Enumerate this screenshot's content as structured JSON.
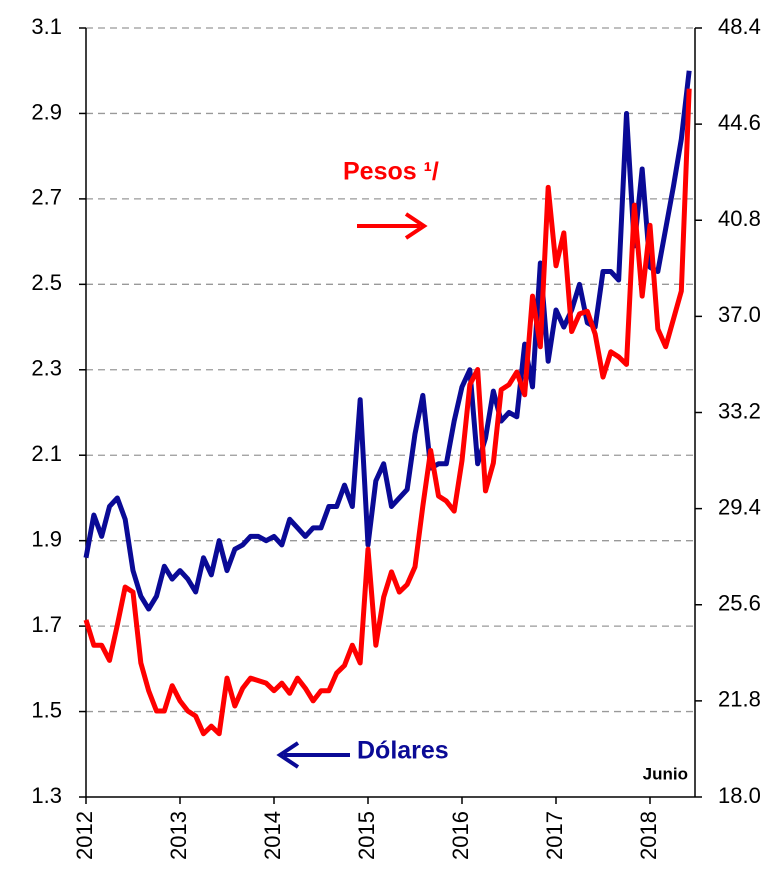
{
  "chart_data": {
    "type": "line",
    "categories": [
      "2012",
      null,
      null,
      null,
      null,
      null,
      null,
      null,
      null,
      null,
      null,
      null,
      "2013",
      null,
      null,
      null,
      null,
      null,
      null,
      null,
      null,
      null,
      null,
      null,
      "2014",
      null,
      null,
      null,
      null,
      null,
      null,
      null,
      null,
      null,
      null,
      null,
      "2015",
      null,
      null,
      null,
      null,
      null,
      null,
      null,
      null,
      null,
      null,
      null,
      "2016",
      null,
      null,
      null,
      null,
      null,
      null,
      null,
      null,
      null,
      null,
      null,
      "2017",
      null,
      null,
      null,
      null,
      null,
      null,
      null,
      null,
      null,
      null,
      null,
      "2018",
      null,
      null,
      null,
      null,
      null
    ],
    "series": [
      {
        "name": "Dólares",
        "color": "#0a0a96",
        "axis": "y",
        "values": [
          1.86,
          1.96,
          1.91,
          1.98,
          2.0,
          1.95,
          1.83,
          1.77,
          1.74,
          1.77,
          1.84,
          1.81,
          1.83,
          1.81,
          1.78,
          1.86,
          1.82,
          1.9,
          1.83,
          1.88,
          1.89,
          1.91,
          1.91,
          1.9,
          1.91,
          1.89,
          1.95,
          1.93,
          1.91,
          1.93,
          1.93,
          1.98,
          1.98,
          2.03,
          1.98,
          2.23,
          1.89,
          2.04,
          2.08,
          1.98,
          2.0,
          2.02,
          2.15,
          2.24,
          2.07,
          2.08,
          2.08,
          2.18,
          2.26,
          2.3,
          2.08,
          2.14,
          2.25,
          2.18,
          2.2,
          2.19,
          2.36,
          2.26,
          2.55,
          2.32,
          2.44,
          2.4,
          2.44,
          2.5,
          2.41,
          2.4,
          2.53,
          2.53,
          2.51,
          2.9,
          2.59,
          2.77,
          2.54,
          2.53,
          2.63,
          2.73,
          2.84,
          3.0
        ]
      },
      {
        "name": "Pesos ¹/",
        "color": "#ff0000",
        "axis": "y2",
        "values": [
          25.0,
          24.0,
          24.0,
          23.4,
          24.8,
          26.3,
          26.1,
          23.3,
          22.2,
          21.4,
          21.4,
          22.4,
          21.8,
          21.4,
          21.2,
          20.5,
          20.8,
          20.5,
          22.7,
          21.6,
          22.3,
          22.7,
          22.6,
          22.5,
          22.2,
          22.5,
          22.1,
          22.7,
          22.3,
          21.8,
          22.2,
          22.2,
          22.9,
          23.2,
          24.0,
          23.3,
          27.8,
          24.0,
          25.9,
          26.9,
          26.1,
          26.4,
          27.1,
          29.5,
          31.7,
          29.9,
          29.7,
          29.3,
          31.3,
          34.3,
          34.9,
          30.1,
          31.2,
          34.1,
          34.3,
          34.8,
          33.9,
          37.8,
          35.8,
          42.1,
          39.0,
          40.3,
          36.4,
          37.1,
          37.2,
          36.3,
          34.6,
          35.6,
          35.4,
          35.1,
          41.4,
          37.8,
          40.6,
          36.5,
          35.8,
          36.9,
          38.0,
          46.0
        ]
      }
    ],
    "ylim": [
      1.3,
      3.1
    ],
    "yticks": [
      1.3,
      1.5,
      1.7,
      1.9,
      2.1,
      2.3,
      2.5,
      2.7,
      2.9,
      3.1
    ],
    "y2lim": [
      18,
      48.4
    ],
    "y2ticks": [
      {
        "value": 18,
        "label": "18.0"
      },
      21.8,
      25.6,
      29.4,
      33.2,
      {
        "value": 37,
        "label": "37.0"
      },
      40.8,
      44.6,
      48.4
    ],
    "grid": true,
    "annotations": [
      "Junio"
    ]
  }
}
